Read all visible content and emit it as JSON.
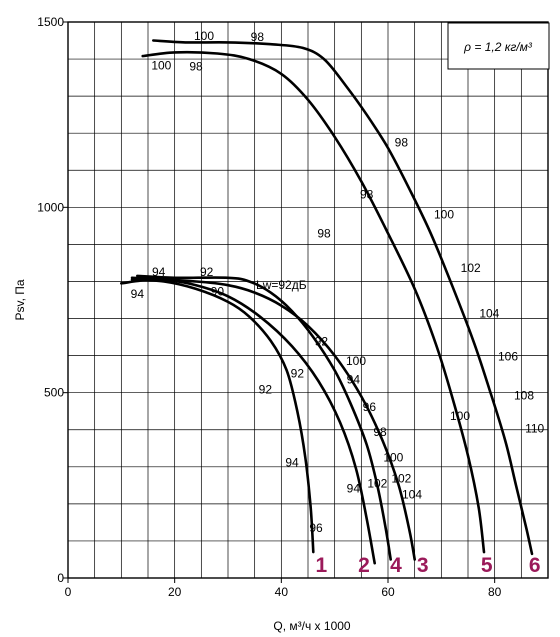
{
  "colors": {
    "number_accent": "#9b1a5a",
    "line": "#000000",
    "background": "#ffffff"
  },
  "chart_data": {
    "type": "line",
    "xlabel": "Q, м³/ч x 1000",
    "ylabel": "Psv, Па",
    "xlim": [
      0,
      90
    ],
    "ylim": [
      0,
      1500
    ],
    "x_ticks": [
      0,
      20,
      40,
      60,
      80
    ],
    "y_ticks": [
      0,
      500,
      1000,
      1500
    ],
    "grid": true,
    "legend_box": "ρ = 1,2 кг/м³",
    "series": [
      {
        "name": "1",
        "points": [
          [
            12,
            805
          ],
          [
            18,
            800
          ],
          [
            24,
            780
          ],
          [
            30,
            745
          ],
          [
            34,
            705
          ],
          [
            38,
            640
          ],
          [
            41,
            560
          ],
          [
            43,
            450
          ],
          [
            44.5,
            325
          ],
          [
            45.5,
            190
          ],
          [
            46,
            70
          ]
        ]
      },
      {
        "name": "2",
        "points": [
          [
            12,
            810
          ],
          [
            18,
            805
          ],
          [
            24,
            790
          ],
          [
            30,
            760
          ],
          [
            36,
            705
          ],
          [
            42,
            625
          ],
          [
            47,
            530
          ],
          [
            51,
            420
          ],
          [
            54,
            295
          ],
          [
            56,
            160
          ],
          [
            57.5,
            40
          ]
        ]
      },
      {
        "name": "4",
        "points": [
          [
            13,
            815
          ],
          [
            20,
            810
          ],
          [
            30,
            810
          ],
          [
            34,
            800
          ],
          [
            38,
            770
          ],
          [
            42,
            720
          ],
          [
            46,
            650
          ],
          [
            50,
            560
          ],
          [
            53,
            470
          ],
          [
            56,
            360
          ],
          [
            58,
            250
          ],
          [
            59.5,
            140
          ],
          [
            60.5,
            50
          ]
        ]
      },
      {
        "name": "3",
        "points": [
          [
            10,
            795
          ],
          [
            16,
            805
          ],
          [
            24,
            800
          ],
          [
            30,
            790
          ],
          [
            35,
            770
          ],
          [
            40,
            735
          ],
          [
            45,
            680
          ],
          [
            50,
            600
          ],
          [
            55,
            490
          ],
          [
            59,
            370
          ],
          [
            62,
            250
          ],
          [
            64,
            130
          ],
          [
            65,
            50
          ]
        ]
      },
      {
        "name": "5",
        "points": [
          [
            14,
            1408
          ],
          [
            20,
            1418
          ],
          [
            28,
            1415
          ],
          [
            34,
            1400
          ],
          [
            40,
            1360
          ],
          [
            45,
            1290
          ],
          [
            50,
            1190
          ],
          [
            55,
            1070
          ],
          [
            60,
            930
          ],
          [
            65,
            780
          ],
          [
            69,
            630
          ],
          [
            72,
            490
          ],
          [
            75,
            330
          ],
          [
            77,
            190
          ],
          [
            78,
            70
          ]
        ]
      },
      {
        "name": "6",
        "points": [
          [
            16,
            1450
          ],
          [
            22,
            1445
          ],
          [
            30,
            1445
          ],
          [
            38,
            1440
          ],
          [
            44,
            1430
          ],
          [
            48,
            1400
          ],
          [
            52,
            1330
          ],
          [
            56,
            1250
          ],
          [
            60,
            1160
          ],
          [
            64,
            1050
          ],
          [
            68,
            930
          ],
          [
            72,
            790
          ],
          [
            76,
            640
          ],
          [
            79,
            510
          ],
          [
            82,
            370
          ],
          [
            84,
            250
          ],
          [
            86,
            130
          ],
          [
            87,
            65
          ]
        ]
      }
    ],
    "annotations": [
      {
        "text": "100",
        "x": 25.5,
        "y": 1462
      },
      {
        "text": "98",
        "x": 35.5,
        "y": 1459
      },
      {
        "text": "100",
        "x": 17.5,
        "y": 1383
      },
      {
        "text": "98",
        "x": 24,
        "y": 1380
      },
      {
        "text": "98",
        "x": 62.5,
        "y": 1175
      },
      {
        "text": "98",
        "x": 56,
        "y": 1035
      },
      {
        "text": "100",
        "x": 70.5,
        "y": 980
      },
      {
        "text": "98",
        "x": 48,
        "y": 930
      },
      {
        "text": "102",
        "x": 75.5,
        "y": 837
      },
      {
        "text": "104",
        "x": 79,
        "y": 713
      },
      {
        "text": "106",
        "x": 82.5,
        "y": 597
      },
      {
        "text": "108",
        "x": 85.5,
        "y": 492
      },
      {
        "text": "110",
        "x": 87.5,
        "y": 403
      },
      {
        "text": "100",
        "x": 73.5,
        "y": 437
      },
      {
        "text": "94",
        "x": 17,
        "y": 826
      },
      {
        "text": "92",
        "x": 26,
        "y": 826
      },
      {
        "text": "90",
        "x": 28,
        "y": 773
      },
      {
        "text": "Lw=92дБ",
        "x": 40,
        "y": 790
      },
      {
        "text": "94",
        "x": 13,
        "y": 766
      },
      {
        "text": "92",
        "x": 47.5,
        "y": 638
      },
      {
        "text": "100",
        "x": 54,
        "y": 585
      },
      {
        "text": "94",
        "x": 53.5,
        "y": 535
      },
      {
        "text": "92",
        "x": 43,
        "y": 552
      },
      {
        "text": "92",
        "x": 37,
        "y": 509
      },
      {
        "text": "96",
        "x": 56.5,
        "y": 462
      },
      {
        "text": "98",
        "x": 58.5,
        "y": 394
      },
      {
        "text": "100",
        "x": 61,
        "y": 325
      },
      {
        "text": "102",
        "x": 62.5,
        "y": 269
      },
      {
        "text": "102",
        "x": 58,
        "y": 255
      },
      {
        "text": "104",
        "x": 64.5,
        "y": 225
      },
      {
        "text": "94",
        "x": 53.5,
        "y": 242
      },
      {
        "text": "94",
        "x": 42,
        "y": 312
      },
      {
        "text": "96",
        "x": 46.5,
        "y": 135
      }
    ],
    "series_end_labels": [
      {
        "text": "1",
        "x": 47.5,
        "y": 38
      },
      {
        "text": "2",
        "x": 55.5,
        "y": 38
      },
      {
        "text": "4",
        "x": 61.5,
        "y": 38
      },
      {
        "text": "3",
        "x": 66.5,
        "y": 38
      },
      {
        "text": "5",
        "x": 78.5,
        "y": 38
      },
      {
        "text": "6",
        "x": 87.5,
        "y": 38
      }
    ]
  }
}
